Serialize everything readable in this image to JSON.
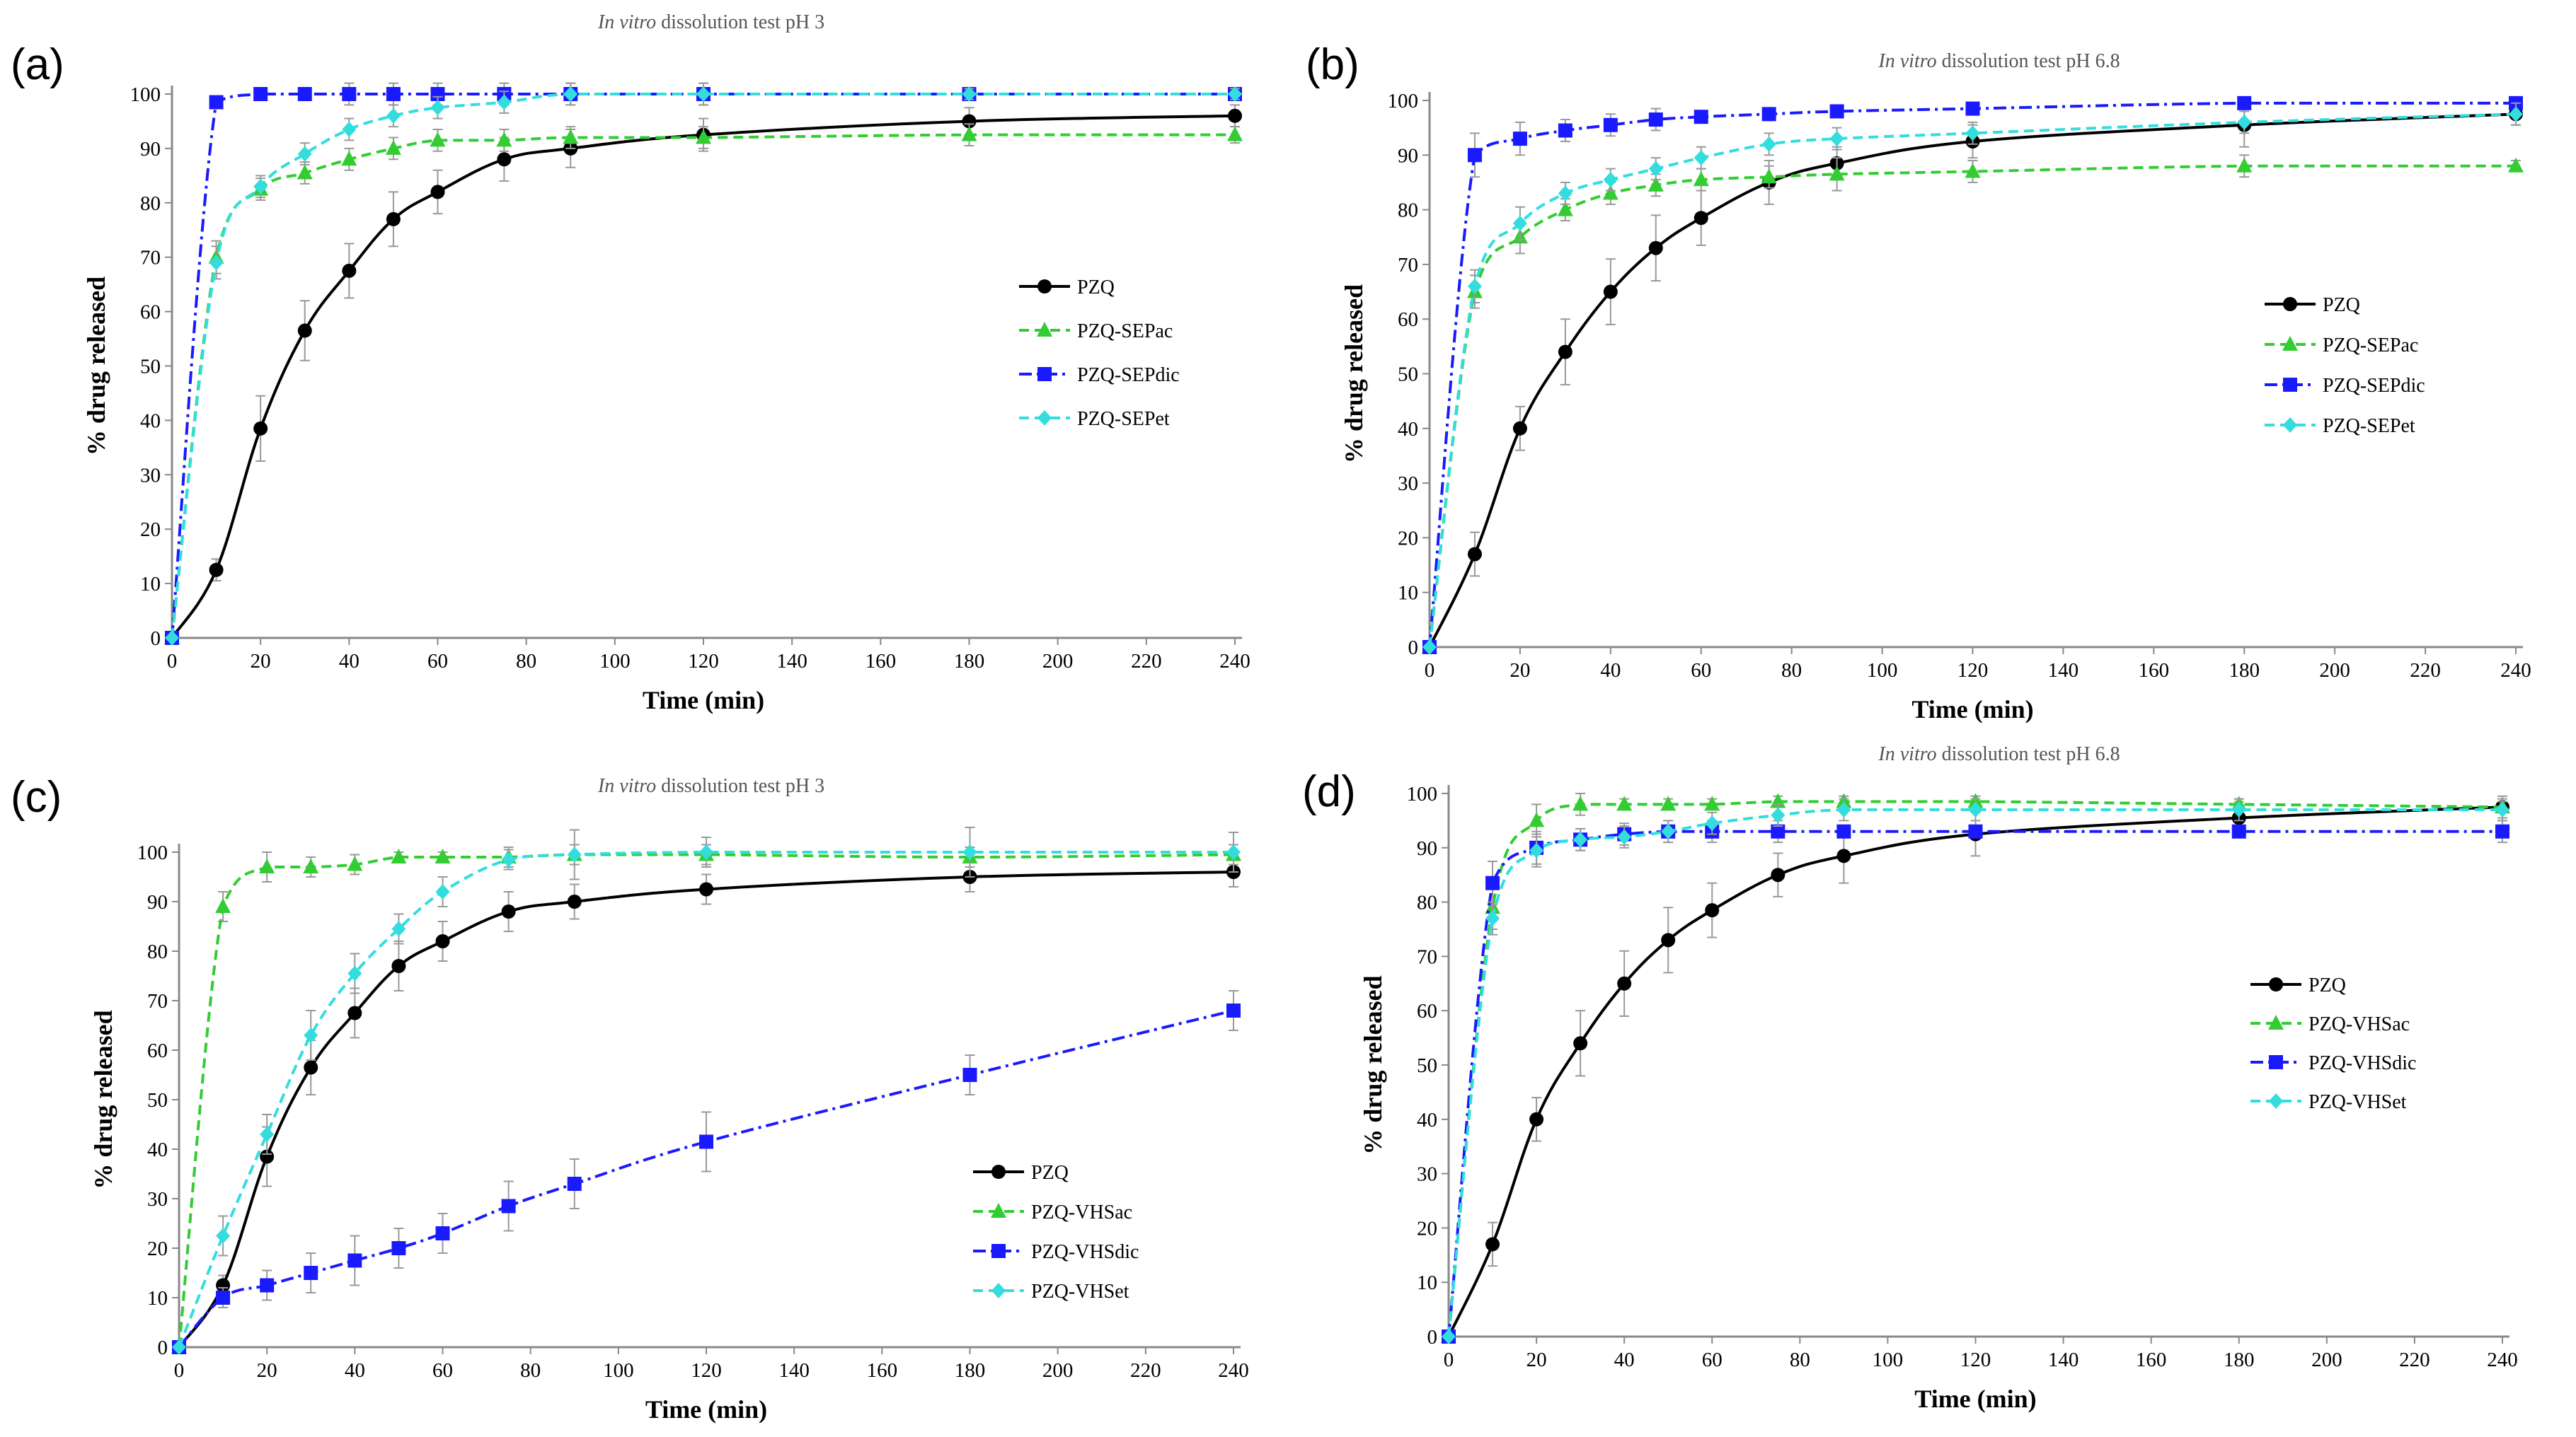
{
  "figure": {
    "panels": [
      "(a)",
      "(b)",
      "(c)",
      "(d)"
    ]
  },
  "chart_data": [
    {
      "panel": "(a)",
      "type": "line",
      "title_italic": "In vitro",
      "title_rest": "dissolution test pH 3",
      "xlabel": "Time (min)",
      "ylabel": "% drug released",
      "xlim": [
        0,
        240
      ],
      "ylim": [
        0,
        100
      ],
      "xticks": [
        0,
        20,
        40,
        60,
        80,
        100,
        120,
        140,
        160,
        180,
        200,
        220,
        240
      ],
      "yticks": [
        0,
        10,
        20,
        30,
        40,
        50,
        60,
        70,
        80,
        90,
        100
      ],
      "legend_position": "right",
      "series": [
        {
          "name": "PZQ",
          "color": "#000000",
          "marker": "circle",
          "dash": "solid",
          "x": [
            0,
            10,
            20,
            30,
            40,
            50,
            60,
            75,
            90,
            120,
            180,
            240
          ],
          "values": [
            0,
            12.5,
            38.5,
            56.5,
            67.5,
            77,
            82,
            88,
            90,
            92.5,
            95,
            96
          ],
          "err": [
            0,
            2,
            6,
            5.5,
            5,
            5,
            4,
            4,
            3.5,
            3,
            2.5,
            2
          ]
        },
        {
          "name": "PZQ-SEPac",
          "color": "#33cc33",
          "marker": "triangle",
          "dash": "dashed",
          "x": [
            0,
            10,
            20,
            30,
            40,
            50,
            60,
            75,
            90,
            120,
            180,
            240
          ],
          "values": [
            0,
            70,
            82.5,
            85.5,
            88,
            90,
            91.5,
            91.5,
            92,
            92,
            92.5,
            92.5
          ],
          "err": [
            0,
            3,
            2,
            2,
            2,
            2,
            2,
            2,
            2,
            2,
            2,
            1.5
          ]
        },
        {
          "name": "PZQ-SEPdic",
          "color": "#1a1aff",
          "marker": "square",
          "dash": "dashdot",
          "x": [
            0,
            10,
            20,
            30,
            40,
            50,
            60,
            75,
            90,
            120,
            180,
            240
          ],
          "values": [
            0,
            98.5,
            100,
            100,
            100,
            100,
            100,
            100,
            100,
            100,
            100,
            100
          ],
          "err": [
            0,
            1,
            1,
            1,
            2,
            2,
            2,
            2,
            2,
            2,
            1,
            1
          ]
        },
        {
          "name": "PZQ-SEPet",
          "color": "#33dddd",
          "marker": "diamond",
          "dash": "dashed",
          "x": [
            0,
            10,
            20,
            30,
            40,
            50,
            60,
            75,
            90,
            120,
            180,
            240
          ],
          "values": [
            0,
            69,
            83,
            89,
            93.5,
            96,
            97.5,
            98.5,
            100,
            100,
            100,
            100
          ],
          "err": [
            0,
            3,
            2,
            2,
            2,
            2,
            2,
            2,
            2,
            2,
            1,
            1
          ]
        }
      ]
    },
    {
      "panel": "(b)",
      "type": "line",
      "title_italic": "In vitro",
      "title_rest": "dissolution test pH 6.8",
      "xlabel": "Time (min)",
      "ylabel": "% drug released",
      "xlim": [
        0,
        240
      ],
      "ylim": [
        0,
        100
      ],
      "xticks": [
        0,
        20,
        40,
        60,
        80,
        100,
        120,
        140,
        160,
        180,
        200,
        220,
        240
      ],
      "yticks": [
        0,
        10,
        20,
        30,
        40,
        50,
        60,
        70,
        80,
        90,
        100
      ],
      "legend_position": "right",
      "series": [
        {
          "name": "PZQ",
          "color": "#000000",
          "marker": "circle",
          "dash": "solid",
          "x": [
            0,
            10,
            20,
            30,
            40,
            50,
            60,
            75,
            90,
            120,
            180,
            240
          ],
          "values": [
            0,
            17,
            40,
            54,
            65,
            73,
            78.5,
            85,
            88.5,
            92.5,
            95.5,
            97.5
          ],
          "err": [
            0,
            4,
            4,
            6,
            6,
            6,
            5,
            4,
            3,
            3,
            4,
            2
          ]
        },
        {
          "name": "PZQ-SEPac",
          "color": "#33cc33",
          "marker": "triangle",
          "dash": "dashed",
          "x": [
            0,
            10,
            20,
            30,
            40,
            50,
            60,
            75,
            90,
            120,
            180,
            240
          ],
          "values": [
            0,
            65,
            75,
            80,
            83,
            84.5,
            85.5,
            86,
            86.5,
            87,
            88,
            88
          ],
          "err": [
            0,
            3,
            3,
            2,
            2,
            2,
            2,
            2,
            3,
            2,
            2,
            1
          ]
        },
        {
          "name": "PZQ-SEPdic",
          "color": "#1a1aff",
          "marker": "square",
          "dash": "dashdot",
          "x": [
            0,
            10,
            20,
            30,
            40,
            50,
            60,
            75,
            90,
            120,
            180,
            240
          ],
          "values": [
            0,
            90,
            93,
            94.5,
            95.5,
            96.5,
            97,
            97.5,
            98,
            98.5,
            99.5,
            99.5
          ],
          "err": [
            0,
            4,
            3,
            2,
            2,
            2,
            1,
            1,
            1,
            1,
            1,
            1
          ]
        },
        {
          "name": "PZQ-SEPet",
          "color": "#33dddd",
          "marker": "diamond",
          "dash": "dashed",
          "x": [
            0,
            10,
            20,
            30,
            40,
            50,
            60,
            75,
            90,
            120,
            180,
            240
          ],
          "values": [
            0,
            66,
            77.5,
            83,
            85.5,
            87.5,
            89.5,
            92,
            93,
            94,
            96,
            97.5
          ],
          "err": [
            0,
            3,
            3,
            2,
            2,
            2,
            2,
            2,
            2,
            2,
            2,
            2
          ]
        }
      ]
    },
    {
      "panel": "(c)",
      "type": "line",
      "title_italic": "In vitro",
      "title_rest": "dissolution test pH 3",
      "xlabel": "Time (min)",
      "ylabel": "% drug released",
      "xlim": [
        0,
        240
      ],
      "ylim": [
        0,
        100
      ],
      "xticks": [
        0,
        20,
        40,
        60,
        80,
        100,
        120,
        140,
        160,
        180,
        200,
        220,
        240
      ],
      "yticks": [
        0,
        10,
        20,
        30,
        40,
        50,
        60,
        70,
        80,
        90,
        100
      ],
      "legend_position": "bottom-right",
      "series": [
        {
          "name": "PZQ",
          "color": "#000000",
          "marker": "circle",
          "dash": "solid",
          "x": [
            0,
            10,
            20,
            30,
            40,
            50,
            60,
            75,
            90,
            120,
            180,
            240
          ],
          "values": [
            0,
            12.5,
            38.5,
            56.5,
            67.5,
            77,
            82,
            88,
            90,
            92.5,
            95,
            96
          ],
          "err": [
            0,
            2,
            6,
            5.5,
            5,
            5,
            4,
            4,
            3.5,
            3,
            3,
            3
          ]
        },
        {
          "name": "PZQ-VHSac",
          "color": "#33cc33",
          "marker": "triangle",
          "dash": "dashed",
          "x": [
            0,
            10,
            20,
            30,
            40,
            50,
            60,
            75,
            90,
            120,
            180,
            240
          ],
          "values": [
            0,
            89,
            97,
            97,
            97.5,
            99,
            99,
            99,
            99.5,
            99.5,
            99,
            99.5
          ],
          "err": [
            0,
            3,
            3,
            2,
            2,
            1,
            1,
            2,
            2,
            2,
            2,
            2
          ]
        },
        {
          "name": "PZQ-VHSdic",
          "color": "#1a1aff",
          "marker": "square",
          "dash": "dashdot",
          "x": [
            0,
            10,
            20,
            30,
            40,
            50,
            60,
            75,
            90,
            120,
            180,
            240
          ],
          "values": [
            0,
            10,
            12.5,
            15,
            17.5,
            20,
            23,
            28.5,
            33,
            41.5,
            55,
            68
          ],
          "err": [
            0,
            2,
            3,
            4,
            5,
            4,
            4,
            5,
            5,
            6,
            4,
            4
          ]
        },
        {
          "name": "PZQ-VHSet",
          "color": "#33dddd",
          "marker": "diamond",
          "dash": "dashed",
          "x": [
            0,
            10,
            20,
            30,
            40,
            50,
            60,
            75,
            90,
            120,
            180,
            240
          ],
          "values": [
            0,
            22.5,
            43,
            63,
            75.5,
            84.5,
            92,
            98.5,
            99.5,
            100,
            100,
            100
          ],
          "err": [
            0,
            4,
            4,
            5,
            4,
            3,
            3,
            2,
            5,
            3,
            5,
            4
          ]
        }
      ]
    },
    {
      "panel": "(d)",
      "type": "line",
      "title_italic": "In vitro",
      "title_rest": "dissolution test pH 6.8",
      "xlabel": "Time (min)",
      "ylabel": "% drug released",
      "xlim": [
        0,
        240
      ],
      "ylim": [
        0,
        100
      ],
      "xticks": [
        0,
        20,
        40,
        60,
        80,
        100,
        120,
        140,
        160,
        180,
        200,
        220,
        240
      ],
      "yticks": [
        0,
        10,
        20,
        30,
        40,
        50,
        60,
        70,
        80,
        90,
        100
      ],
      "legend_position": "right",
      "series": [
        {
          "name": "PZQ",
          "color": "#000000",
          "marker": "circle",
          "dash": "solid",
          "x": [
            0,
            10,
            20,
            30,
            40,
            50,
            60,
            75,
            90,
            120,
            180,
            240
          ],
          "values": [
            0,
            17,
            40,
            54,
            65,
            73,
            78.5,
            85,
            88.5,
            92.5,
            95.5,
            97.5
          ],
          "err": [
            0,
            4,
            4,
            6,
            6,
            6,
            5,
            4,
            5,
            4,
            3,
            2
          ]
        },
        {
          "name": "PZQ-VHSac",
          "color": "#33cc33",
          "marker": "triangle",
          "dash": "dashed",
          "x": [
            0,
            10,
            20,
            30,
            40,
            50,
            60,
            75,
            90,
            120,
            180,
            240
          ],
          "values": [
            0,
            79,
            95,
            98,
            98,
            98,
            98,
            98.5,
            98.5,
            98.5,
            98,
            97.5
          ],
          "err": [
            0,
            4,
            3,
            2,
            1,
            1,
            1,
            1,
            1,
            1,
            1,
            1
          ]
        },
        {
          "name": "PZQ-VHSdic",
          "color": "#1a1aff",
          "marker": "square",
          "dash": "dashdot",
          "x": [
            0,
            10,
            20,
            30,
            40,
            50,
            60,
            75,
            90,
            120,
            180,
            240
          ],
          "values": [
            0,
            83.5,
            90,
            91.5,
            92.5,
            93,
            93,
            93,
            93,
            93,
            93,
            93
          ],
          "err": [
            0,
            4,
            3,
            2,
            2,
            2,
            2,
            2,
            1,
            1,
            1,
            2
          ]
        },
        {
          "name": "PZQ-VHSet",
          "color": "#33dddd",
          "marker": "diamond",
          "dash": "dashed",
          "x": [
            0,
            10,
            20,
            30,
            40,
            50,
            60,
            75,
            90,
            120,
            180,
            240
          ],
          "values": [
            0,
            77,
            89.5,
            91.5,
            92,
            93,
            94.5,
            96,
            97,
            97,
            97,
            97
          ],
          "err": [
            0,
            3,
            3,
            2,
            2,
            2,
            2,
            2,
            2,
            2,
            2,
            2
          ]
        }
      ]
    }
  ]
}
